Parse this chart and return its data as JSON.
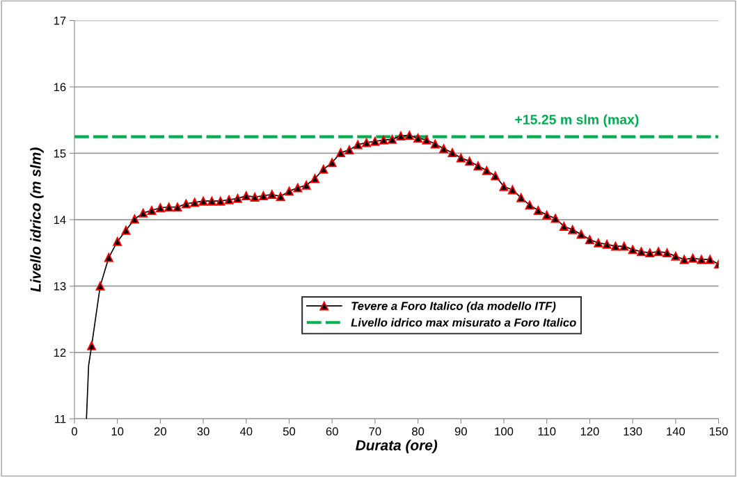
{
  "chart_data": {
    "type": "line",
    "xlabel": "Durata (ore)",
    "ylabel": "Livello idrico (m slm)",
    "xlim": [
      0,
      150
    ],
    "xticks": [
      0,
      10,
      20,
      30,
      40,
      50,
      60,
      70,
      80,
      90,
      100,
      110,
      120,
      130,
      140,
      150
    ],
    "ylim": [
      11,
      17
    ],
    "yticks": [
      11,
      12,
      13,
      14,
      15,
      16,
      17
    ],
    "grid": "y",
    "legend": "center",
    "series": [
      {
        "name": "Tevere a Foro Italico (da modello ITF)",
        "color": "#000000",
        "marker": "triangle",
        "line_style": "solid",
        "x": [
          4,
          6,
          8,
          10,
          12,
          14,
          16,
          18,
          20,
          22,
          24,
          26,
          28,
          30,
          32,
          34,
          36,
          38,
          40,
          42,
          44,
          46,
          48,
          50,
          52,
          54,
          56,
          58,
          60,
          62,
          64,
          66,
          68,
          70,
          72,
          74,
          76,
          78,
          80,
          82,
          84,
          86,
          88,
          90,
          92,
          94,
          96,
          98,
          100,
          102,
          104,
          106,
          108,
          110,
          112,
          114,
          116,
          118,
          120,
          122,
          124,
          126,
          128,
          130,
          132,
          134,
          136,
          138,
          140,
          142,
          144,
          146,
          148,
          150
        ],
        "values": [
          12.1,
          13.0,
          13.43,
          13.67,
          13.84,
          14.01,
          14.1,
          14.14,
          14.18,
          14.19,
          14.19,
          14.24,
          14.26,
          14.28,
          14.28,
          14.28,
          14.3,
          14.32,
          14.36,
          14.34,
          14.36,
          14.38,
          14.35,
          14.43,
          14.48,
          14.52,
          14.62,
          14.76,
          14.86,
          15.01,
          15.05,
          15.13,
          15.16,
          15.18,
          15.2,
          15.21,
          15.26,
          15.27,
          15.23,
          15.2,
          15.14,
          15.07,
          15.01,
          14.93,
          14.88,
          14.81,
          14.74,
          14.66,
          14.5,
          14.45,
          14.33,
          14.22,
          14.14,
          14.07,
          14.02,
          13.9,
          13.85,
          13.78,
          13.7,
          13.65,
          13.63,
          13.6,
          13.6,
          13.55,
          13.52,
          13.5,
          13.52,
          13.5,
          13.45,
          13.4,
          13.42,
          13.4,
          13.4,
          13.33
        ]
      },
      {
        "color": "#000000",
        "marker": "none",
        "line_style": "solid",
        "x": [
          2.8,
          3.3,
          4
        ],
        "values": [
          11.0,
          11.8,
          12.1
        ]
      },
      {
        "name": "Livello idrico max misurato a Foro Italico",
        "color": "#00b050",
        "marker": "none",
        "line_style": "dashed",
        "x": [
          0,
          150
        ],
        "values": [
          15.25,
          15.25
        ]
      }
    ],
    "annotations": [
      {
        "text": "+15.25 m slm (max)",
        "x": 117,
        "y": 15.25
      }
    ]
  }
}
